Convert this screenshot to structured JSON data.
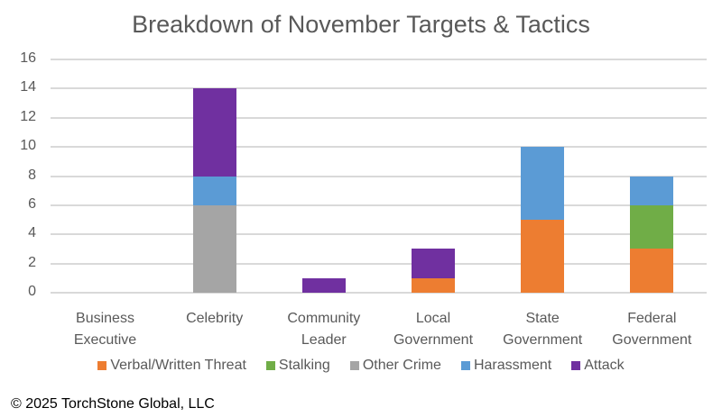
{
  "chart_data": {
    "type": "bar",
    "stacked": true,
    "title": "Breakdown of November Targets & Tactics",
    "xlabel": "",
    "ylabel": "",
    "ylim": [
      0,
      16
    ],
    "yticks": [
      0,
      2,
      4,
      6,
      8,
      10,
      12,
      14,
      16
    ],
    "grid": true,
    "legend_position": "bottom",
    "categories": [
      "Business Executive",
      "Celebrity",
      "Community Leader",
      "Local Government",
      "State Government",
      "Federal Government"
    ],
    "category_lines": [
      [
        "Business",
        "Executive"
      ],
      [
        "Celebrity",
        ""
      ],
      [
        "Community",
        "Leader"
      ],
      [
        "Local",
        "Government"
      ],
      [
        "State",
        "Government"
      ],
      [
        "Federal",
        "Government"
      ]
    ],
    "series": [
      {
        "name": "Verbal/Written Threat",
        "color": "#ED7D31",
        "values": [
          0,
          0,
          0,
          1,
          5,
          3
        ]
      },
      {
        "name": "Stalking",
        "color": "#70AD47",
        "values": [
          0,
          0,
          0,
          0,
          0,
          3
        ]
      },
      {
        "name": "Other Crime",
        "color": "#A5A5A5",
        "values": [
          0,
          6,
          0,
          0,
          0,
          0
        ]
      },
      {
        "name": "Harassment",
        "color": "#5B9BD5",
        "values": [
          0,
          2,
          0,
          0,
          5,
          2
        ]
      },
      {
        "name": "Attack",
        "color": "#7030A0",
        "values": [
          0,
          6,
          1,
          2,
          0,
          0
        ]
      }
    ]
  },
  "footer": {
    "copyright": "© 2025 TorchStone Global, LLC"
  }
}
